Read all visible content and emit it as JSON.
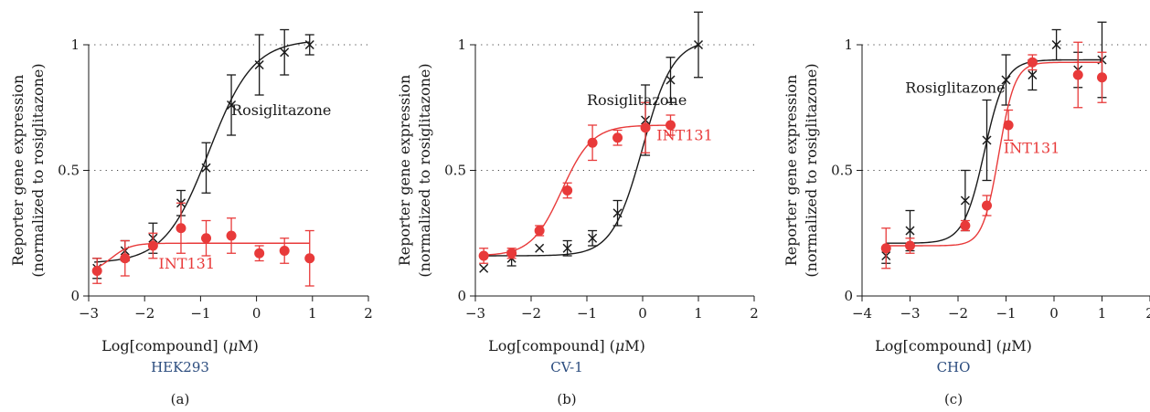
{
  "chart_data": [
    {
      "type": "scatter",
      "panel": "(a)",
      "cell_line": "HEK293",
      "xlabel_prefix": "Log[compound] (",
      "xlabel_mu": "μ",
      "xlabel_suffix": "M)",
      "ylabel_line1": "Reporter gene expression",
      "ylabel_line2": "(normalized to rosiglitazone)",
      "xlim": [
        -3,
        2
      ],
      "ylim": [
        0,
        1
      ],
      "xticks": [
        -3,
        -2,
        -1,
        0,
        1,
        2
      ],
      "xtick_labels": [
        "−3",
        "−2",
        "−1",
        "0",
        "1",
        "2"
      ],
      "yticks": [
        0,
        0.5,
        1
      ],
      "ytick_labels": [
        "0",
        "0.5",
        "1"
      ],
      "dotted_gridlines": [
        0.5,
        1
      ],
      "series": [
        {
          "name": "Rosiglitazone",
          "color": "#1a1a1a",
          "marker": "x",
          "x": [
            -2.85,
            -2.35,
            -1.85,
            -1.35,
            -0.9,
            -0.45,
            0.05,
            0.5,
            0.95
          ],
          "y": [
            0.11,
            0.18,
            0.23,
            0.37,
            0.51,
            0.76,
            0.92,
            0.97,
            1.0
          ],
          "err": [
            0.04,
            0.04,
            0.06,
            0.05,
            0.1,
            0.12,
            0.12,
            0.09,
            0.04
          ],
          "fit": {
            "bottom": 0.13,
            "top": 1.02,
            "logec50": -0.85,
            "hill": 1.1,
            "xmin": -2.9,
            "xmax": 0.95
          }
        },
        {
          "name": "INT131",
          "color": "#e83a3a",
          "marker": "circle",
          "x": [
            -2.85,
            -2.35,
            -1.85,
            -1.35,
            -0.9,
            -0.45,
            0.05,
            0.5,
            0.95
          ],
          "y": [
            0.1,
            0.15,
            0.2,
            0.27,
            0.23,
            0.24,
            0.17,
            0.18,
            0.15
          ],
          "err": [
            0.05,
            0.07,
            0.05,
            0.1,
            0.07,
            0.07,
            0.03,
            0.05,
            0.11
          ],
          "fit": {
            "bottom": 0.09,
            "top": 0.21,
            "logec50": -2.6,
            "hill": 2.5,
            "xmin": -2.9,
            "xmax": 0.95
          }
        }
      ],
      "annotations": [
        {
          "text": "Rosiglitazone",
          "x": -0.45,
          "y": 0.72,
          "color": "#1a1a1a"
        },
        {
          "text": "INT131",
          "x": -1.75,
          "y": 0.11,
          "color": "#e83a3a"
        }
      ]
    },
    {
      "type": "scatter",
      "panel": "(b)",
      "cell_line": "CV-1",
      "xlabel_prefix": "Log[compound] (",
      "xlabel_mu": "μ",
      "xlabel_suffix": "M)",
      "ylabel_line1": "Reporter gene expression",
      "ylabel_line2": "(normalized to rosiglitazone)",
      "xlim": [
        -3,
        2
      ],
      "ylim": [
        0,
        1
      ],
      "xticks": [
        -3,
        -2,
        -1,
        0,
        1,
        2
      ],
      "xtick_labels": [
        "−3",
        "−2",
        "−1",
        "0",
        "1",
        "2"
      ],
      "yticks": [
        0,
        0.5,
        1
      ],
      "ytick_labels": [
        "0",
        "0.5",
        "1"
      ],
      "dotted_gridlines": [
        0.5,
        1
      ],
      "series": [
        {
          "name": "Rosiglitazone",
          "color": "#1a1a1a",
          "marker": "x",
          "x": [
            -2.85,
            -2.35,
            -1.85,
            -1.35,
            -0.9,
            -0.45,
            0.05,
            0.5,
            1.0
          ],
          "y": [
            0.11,
            0.15,
            0.19,
            0.19,
            0.23,
            0.33,
            0.7,
            0.86,
            1.0
          ],
          "err": [
            0.0,
            0.03,
            0.0,
            0.03,
            0.03,
            0.05,
            0.14,
            0.09,
            0.13
          ],
          "fit": {
            "bottom": 0.16,
            "top": 1.02,
            "logec50": 0.0,
            "hill": 1.6,
            "xmin": -2.9,
            "xmax": 1.0
          }
        },
        {
          "name": "INT131",
          "color": "#e83a3a",
          "marker": "circle",
          "x": [
            -2.85,
            -2.35,
            -1.85,
            -1.35,
            -0.9,
            -0.45,
            0.05,
            0.5
          ],
          "y": [
            0.16,
            0.17,
            0.26,
            0.42,
            0.61,
            0.63,
            0.67,
            0.68
          ],
          "err": [
            0.03,
            0.02,
            0.02,
            0.03,
            0.07,
            0.03,
            0.1,
            0.04
          ],
          "fit": {
            "bottom": 0.16,
            "top": 0.68,
            "logec50": -1.45,
            "hill": 1.6,
            "xmin": -2.9,
            "xmax": 0.5
          }
        }
      ],
      "annotations": [
        {
          "text": "Rosiglitazone",
          "x": -1.0,
          "y": 0.76,
          "color": "#1a1a1a"
        },
        {
          "text": "INT131",
          "x": 0.25,
          "y": 0.62,
          "color": "#e83a3a"
        }
      ]
    },
    {
      "type": "scatter",
      "panel": "(c)",
      "cell_line": "CHO",
      "xlabel_prefix": "Log[compound] (",
      "xlabel_mu": "μ",
      "xlabel_suffix": "M)",
      "ylabel_line1": "Reporter gene expression",
      "ylabel_line2": "(normalized to rosiglitazone)",
      "xlim": [
        -4,
        2
      ],
      "ylim": [
        0,
        1
      ],
      "xticks": [
        -4,
        -3,
        -2,
        -1,
        0,
        1,
        2
      ],
      "xtick_labels": [
        "−4",
        "−3",
        "−2",
        "−1",
        "0",
        "1",
        "2"
      ],
      "yticks": [
        0,
        0.5,
        1
      ],
      "ytick_labels": [
        "0",
        "0.5",
        "1"
      ],
      "dotted_gridlines": [
        0.5,
        1
      ],
      "series": [
        {
          "name": "Rosiglitazone",
          "color": "#1a1a1a",
          "marker": "x",
          "x": [
            -3.5,
            -3.0,
            -1.85,
            -1.4,
            -1.0,
            -0.45,
            0.05,
            0.5,
            1.0
          ],
          "y": [
            0.16,
            0.26,
            0.38,
            0.62,
            0.86,
            0.88,
            1.0,
            0.9,
            0.94
          ],
          "err": [
            0.03,
            0.08,
            0.12,
            0.16,
            0.1,
            0.06,
            0.06,
            0.07,
            0.15
          ],
          "fit": {
            "bottom": 0.21,
            "top": 0.94,
            "logec50": -1.45,
            "hill": 2.0,
            "xmin": -3.5,
            "xmax": 1.0
          }
        },
        {
          "name": "INT131",
          "color": "#e83a3a",
          "marker": "circle",
          "x": [
            -3.5,
            -3.0,
            -1.85,
            -1.4,
            -0.95,
            -0.45,
            0.5,
            1.0
          ],
          "y": [
            0.19,
            0.2,
            0.28,
            0.36,
            0.68,
            0.93,
            0.88,
            0.87
          ],
          "err": [
            0.08,
            0.03,
            0.02,
            0.04,
            0.06,
            0.03,
            0.13,
            0.1
          ],
          "fit": {
            "bottom": 0.2,
            "top": 0.93,
            "logec50": -1.15,
            "hill": 2.6,
            "xmin": -3.5,
            "xmax": 1.0
          }
        }
      ],
      "annotations": [
        {
          "text": "Rosiglitazone",
          "x": -3.1,
          "y": 0.81,
          "color": "#1a1a1a"
        },
        {
          "text": "INT131",
          "x": -1.05,
          "y": 0.57,
          "color": "#e83a3a"
        }
      ]
    }
  ]
}
